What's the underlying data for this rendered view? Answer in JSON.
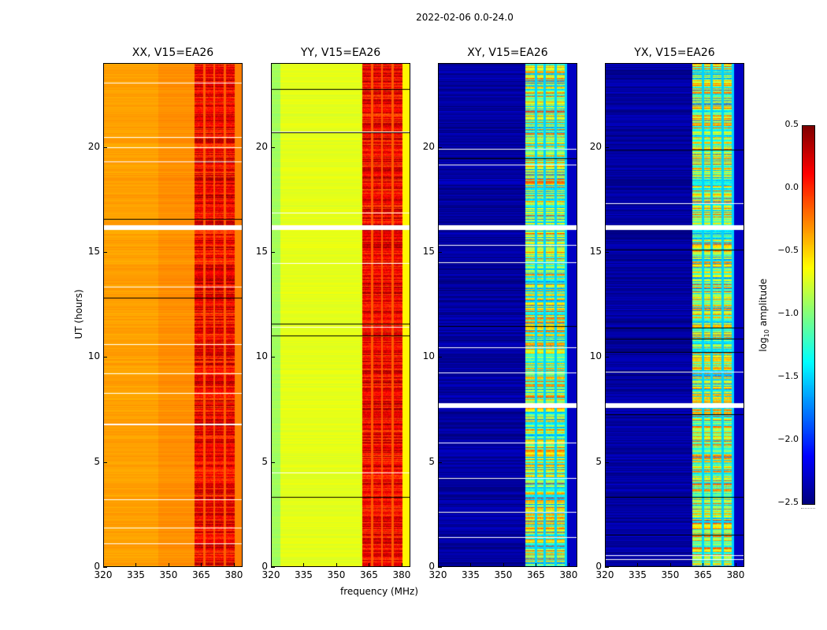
{
  "chart_data": {
    "type": "heatmap",
    "suptitle": "2022-02-06 0.0-24.0",
    "xlabel": "frequency (MHz)",
    "ylabel": "UT (hours)",
    "xlim": [
      320,
      384
    ],
    "ylim": [
      0,
      24
    ],
    "xticks": [
      "320",
      "335",
      "350",
      "365",
      "380"
    ],
    "xtick_values": [
      320,
      335,
      350,
      365,
      380
    ],
    "yticks": [
      "0",
      "5",
      "10",
      "15",
      "20"
    ],
    "ytick_values": [
      0,
      5,
      10,
      15,
      20
    ],
    "colorbar": {
      "label_main": "log",
      "label_sub": "10",
      "label_rest": " amplitude",
      "range": [
        -2.5,
        0.5
      ],
      "ticks": [
        "0.5",
        "0.0",
        "−0.5",
        "−1.0",
        "−1.5",
        "−2.0",
        "−2.5"
      ],
      "tick_values": [
        0.5,
        0.0,
        -0.5,
        -1.0,
        -1.5,
        -2.0,
        -2.5
      ],
      "colormap": "jet"
    },
    "panels": [
      {
        "title": "XX, V15=EA26",
        "background_level": -0.35,
        "band_level": 0.15,
        "band_mhz": [
          362,
          380
        ],
        "gaps_mhz": [
          366.5,
          371,
          376
        ],
        "flagged_hours": [
          16.2
        ],
        "show_ylabel": true
      },
      {
        "title": "YY, V15=EA26",
        "background_level": -0.7,
        "band_level": 0.15,
        "band_mhz": [
          362,
          380
        ],
        "gaps_mhz": [
          366.5,
          371,
          376
        ],
        "flagged_hours": [
          16.2
        ],
        "show_ylabel": false
      },
      {
        "title": "XY, V15=EA26",
        "background_level": -2.4,
        "band_level": -0.9,
        "band_mhz": [
          360,
          379
        ],
        "gaps_mhz": [
          365,
          369,
          374,
          379
        ],
        "flagged_hours": [
          16.2,
          7.7
        ],
        "show_ylabel": false
      },
      {
        "title": "YX, V15=EA26",
        "background_level": -2.4,
        "band_level": -0.9,
        "band_mhz": [
          360,
          379
        ],
        "gaps_mhz": [
          365,
          369,
          374,
          379
        ],
        "flagged_hours": [
          16.2,
          7.7
        ],
        "show_ylabel": false
      }
    ]
  }
}
